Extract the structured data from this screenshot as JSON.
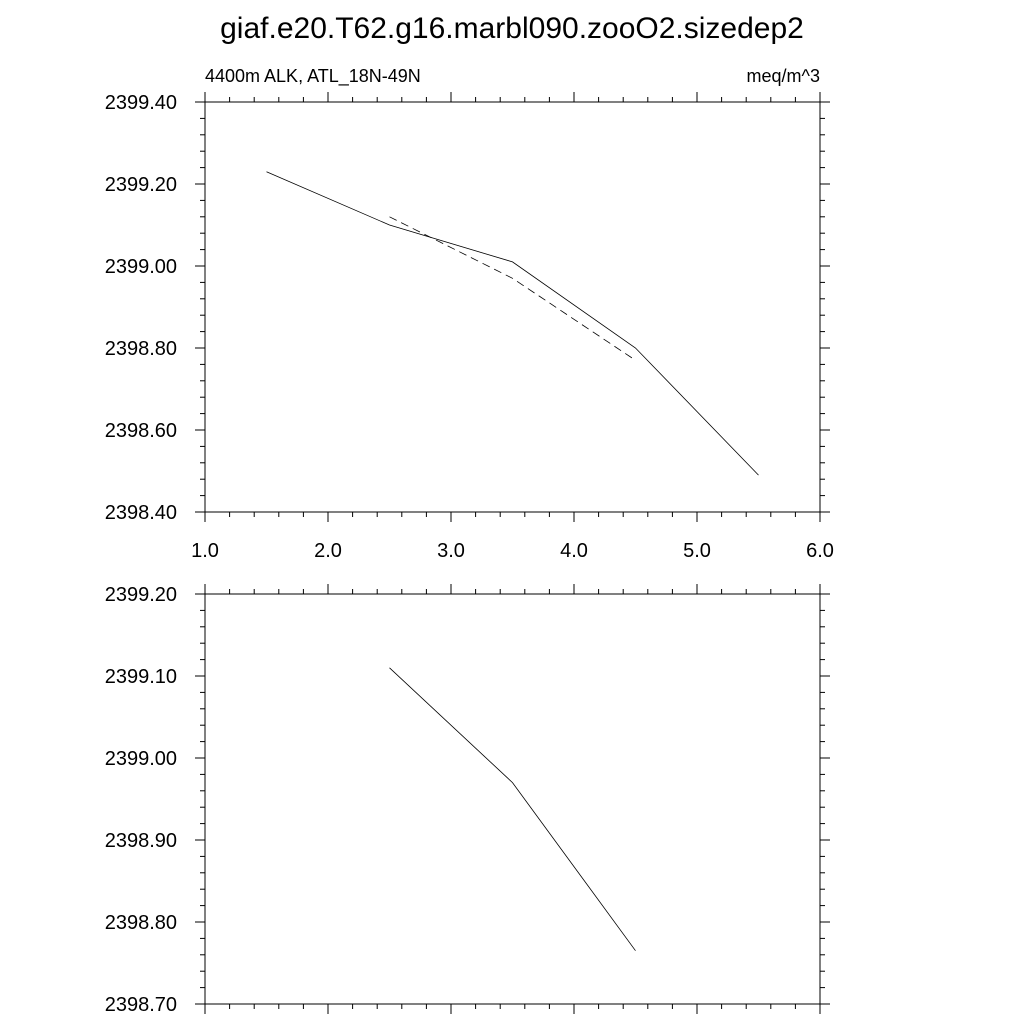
{
  "title": "giaf.e20.T62.g16.marbl090.zooO2.sizedep2",
  "chart_data": [
    {
      "type": "line",
      "left_label": "4400m ALK, ATL_18N-49N",
      "right_label": "meq/m^3",
      "xlim": [
        1.0,
        6.0
      ],
      "ylim": [
        2398.4,
        2399.4
      ],
      "x_tick_labels": [
        "1.0",
        "2.0",
        "3.0",
        "4.0",
        "5.0",
        "6.0"
      ],
      "y_tick_labels": [
        "2398.40",
        "2398.60",
        "2398.80",
        "2399.00",
        "2399.20",
        "2399.40"
      ],
      "series": [
        {
          "style": "solid",
          "x": [
            1.5,
            2.5,
            3.5,
            4.5,
            5.5
          ],
          "y": [
            2399.23,
            2399.1,
            2399.01,
            2398.8,
            2398.49
          ]
        },
        {
          "style": "dashed",
          "x": [
            2.5,
            3.5,
            4.5
          ],
          "y": [
            2399.12,
            2398.97,
            2398.77
          ]
        }
      ]
    },
    {
      "type": "line",
      "xlim": [
        1.0,
        6.0
      ],
      "ylim": [
        2398.7,
        2399.2
      ],
      "x_tick_labels": [],
      "y_tick_labels": [
        "2398.70",
        "2398.80",
        "2398.90",
        "2399.00",
        "2399.10",
        "2399.20"
      ],
      "series": [
        {
          "style": "solid",
          "x": [
            2.5,
            3.5,
            4.5
          ],
          "y": [
            2399.11,
            2398.97,
            2398.765
          ]
        }
      ]
    }
  ]
}
